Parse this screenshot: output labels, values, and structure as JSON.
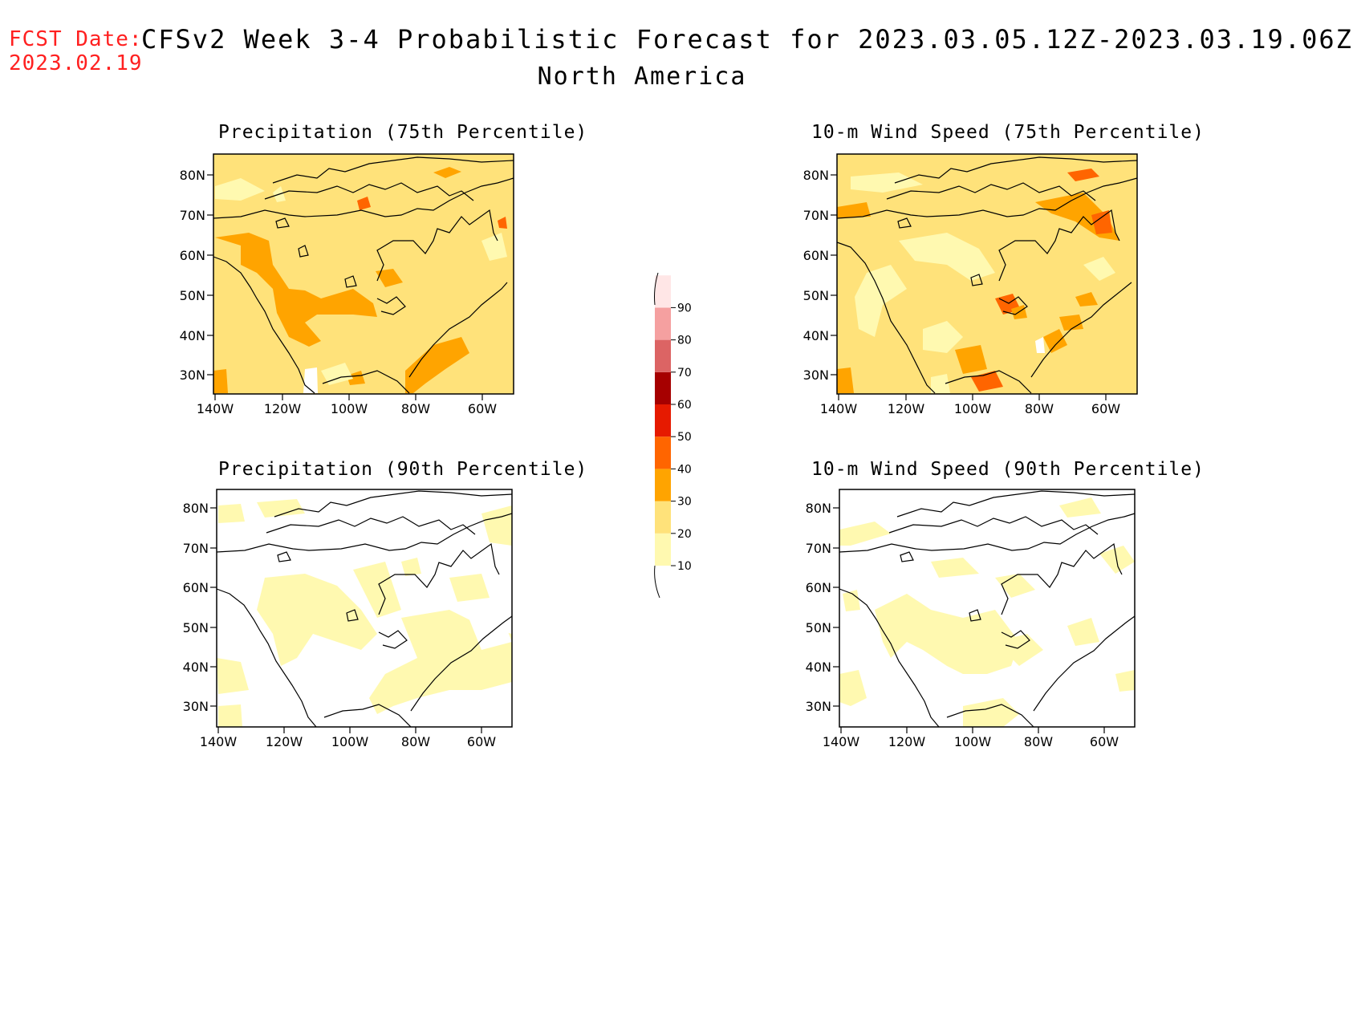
{
  "header": {
    "fcst_label": "FCST Date:",
    "fcst_date": "2023.02.19",
    "title": "CFSv2 Week 3-4 Probabilistic Forecast for 2023.03.05.12Z-2023.03.19.06Z",
    "subtitle": "North America"
  },
  "panels": [
    {
      "title": "Precipitation (75th Percentile)",
      "variable": "precipitation",
      "percentile": "75th"
    },
    {
      "title": "10-m Wind Speed (75th Percentile)",
      "variable": "wind",
      "percentile": "75th"
    },
    {
      "title": "Precipitation (90th Percentile)",
      "variable": "precipitation",
      "percentile": "90th"
    },
    {
      "title": "10-m Wind Speed (90th Percentile)",
      "variable": "wind",
      "percentile": "90th"
    }
  ],
  "axes": {
    "lat_labels": [
      "80N",
      "70N",
      "60N",
      "50N",
      "40N",
      "30N"
    ],
    "lon_labels": [
      "140W",
      "120W",
      "100W",
      "80W",
      "60W"
    ]
  },
  "colorbar": {
    "levels": [
      "10",
      "20",
      "30",
      "40",
      "50",
      "60",
      "70",
      "80",
      "90"
    ],
    "colors": [
      "#fff9b0",
      "#ffe27a",
      "#ffa400",
      "#ff6500",
      "#e61a00",
      "#a60000",
      "#dc6464",
      "#f5a0a0",
      "#ffe6e6"
    ]
  }
}
